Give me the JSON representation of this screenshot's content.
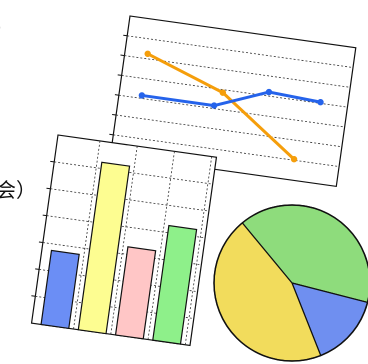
{
  "text_fragments": {
    "top": "）",
    "mid": "会）"
  },
  "clipart": {
    "line_chart": {
      "series": [
        {
          "color": "#f59e0b",
          "points": [
            [
              0.1,
              0.25
            ],
            [
              0.45,
              0.45
            ],
            [
              0.8,
              0.85
            ]
          ]
        },
        {
          "color": "#2563eb",
          "points": [
            [
              0.1,
              0.55
            ],
            [
              0.42,
              0.55
            ],
            [
              0.65,
              0.4
            ],
            [
              0.88,
              0.42
            ]
          ]
        }
      ]
    },
    "bar_chart": {
      "values": [
        0.42,
        0.95,
        0.5,
        0.65
      ],
      "colors": [
        "#6b8ef5",
        "#fdfd91",
        "#ffc6c6",
        "#8ef08a"
      ]
    },
    "pie_chart": {
      "slices": [
        {
          "value": 0.4,
          "color": "#8edc7c"
        },
        {
          "value": 0.15,
          "color": "#6f8ff0"
        },
        {
          "value": 0.45,
          "color": "#f2dc5c"
        }
      ]
    }
  }
}
